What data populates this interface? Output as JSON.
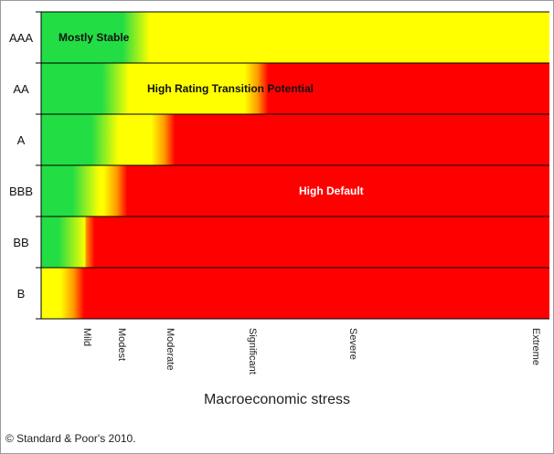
{
  "chart_data": {
    "type": "heatmap",
    "title": "",
    "xlabel": "Macroeconomic stress",
    "ylabel": "",
    "rows": [
      "AAA",
      "AA",
      "A",
      "BBB",
      "BB",
      "B"
    ],
    "x_ticks": [
      "Mild",
      "Modest",
      "Moderate",
      "Significant",
      "Severe",
      "Extreme"
    ],
    "legend": "none",
    "grid": "horizontal row separators",
    "colors": {
      "stable": "#22dd44",
      "transition": "#ffff00",
      "default": "#ff0000"
    },
    "row_bands": [
      {
        "rating": "AAA",
        "green_end_stress": 1.0,
        "red_start_stress": 5.75
      },
      {
        "rating": "AA",
        "green_end_stress": 0.4,
        "red_start_stress": 3.15
      },
      {
        "rating": "A",
        "green_end_stress": 0.1,
        "red_start_stress": 2.05
      },
      {
        "rating": "BBB",
        "green_end_stress": -0.45,
        "red_start_stress": 1.1
      },
      {
        "rating": "BB",
        "green_end_stress": -0.85,
        "red_start_stress": 0.2
      },
      {
        "rating": "B",
        "green_end_stress": null,
        "red_start_stress": -0.1
      }
    ],
    "annotations": [
      {
        "text": "Mostly Stable",
        "row": "AAA",
        "zone": "stable"
      },
      {
        "text": "High Rating Transition Potential",
        "row": "AA",
        "zone": "transition"
      },
      {
        "text": "High Default",
        "row": "BBB",
        "zone": "default"
      }
    ]
  },
  "source_text": "© Standard & Poor's 2010."
}
